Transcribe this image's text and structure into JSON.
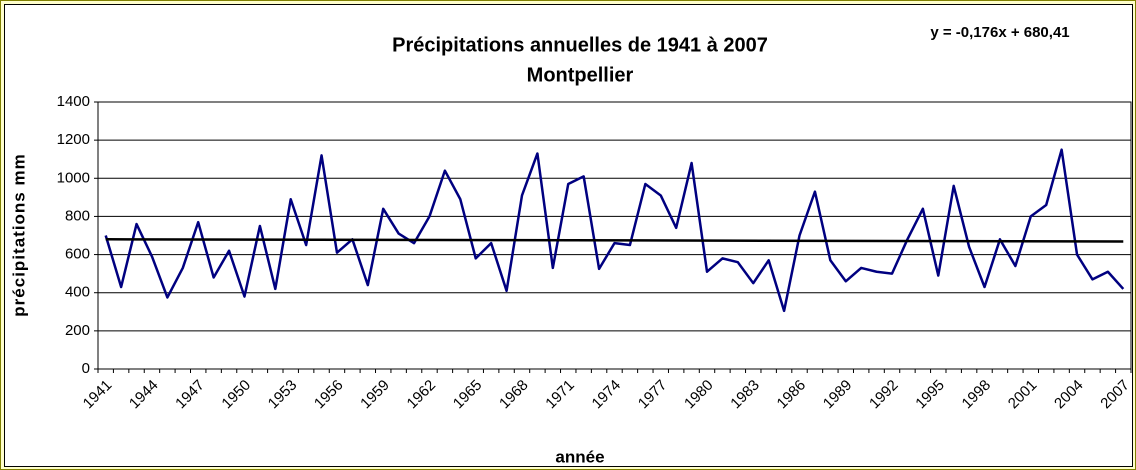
{
  "chart_data": {
    "type": "line",
    "title": "Précipitations annuelles de 1941 à 2007",
    "subtitle": "Montpellier",
    "x_label": "année",
    "y_label": "précipitations mm",
    "categories": [
      "1941",
      null,
      null,
      "1944",
      null,
      null,
      "1947",
      null,
      null,
      "1950",
      null,
      null,
      "1953",
      null,
      null,
      "1956",
      null,
      null,
      "1959",
      null,
      null,
      "1962",
      null,
      null,
      "1965",
      null,
      null,
      "1968",
      null,
      null,
      "1971",
      null,
      null,
      "1974",
      null,
      null,
      "1977",
      null,
      null,
      "1980",
      null,
      null,
      "1983",
      null,
      null,
      "1986",
      null,
      null,
      "1989",
      null,
      null,
      "1992",
      null,
      null,
      "1995",
      null,
      null,
      "1998",
      null,
      null,
      "2001",
      null,
      null,
      "2004",
      null,
      null,
      "2007"
    ],
    "series": [
      {
        "color": "#000080",
        "values": [
          700,
          430,
          760,
          590,
          375,
          530,
          770,
          480,
          620,
          380,
          750,
          420,
          890,
          650,
          1120,
          610,
          680,
          440,
          840,
          710,
          660,
          800,
          1040,
          890,
          580,
          660,
          410,
          910,
          1130,
          530,
          970,
          1010,
          525,
          660,
          650,
          970,
          910,
          740,
          1080,
          510,
          580,
          560,
          450,
          570,
          305,
          700,
          930,
          570,
          460,
          530,
          510,
          500,
          680,
          840,
          490,
          960,
          640,
          430,
          680,
          540,
          800,
          860,
          1150,
          600,
          470,
          510,
          420
        ]
      }
    ],
    "trendline": {
      "equation": "y = -0,176x + 680,41",
      "color": "#000000",
      "values": [
        680.23,
        668.62
      ]
    },
    "ylim": [
      0,
      1400
    ],
    "yticks": [
      0,
      200,
      400,
      600,
      800,
      1000,
      1200,
      1400
    ],
    "grid": true
  }
}
